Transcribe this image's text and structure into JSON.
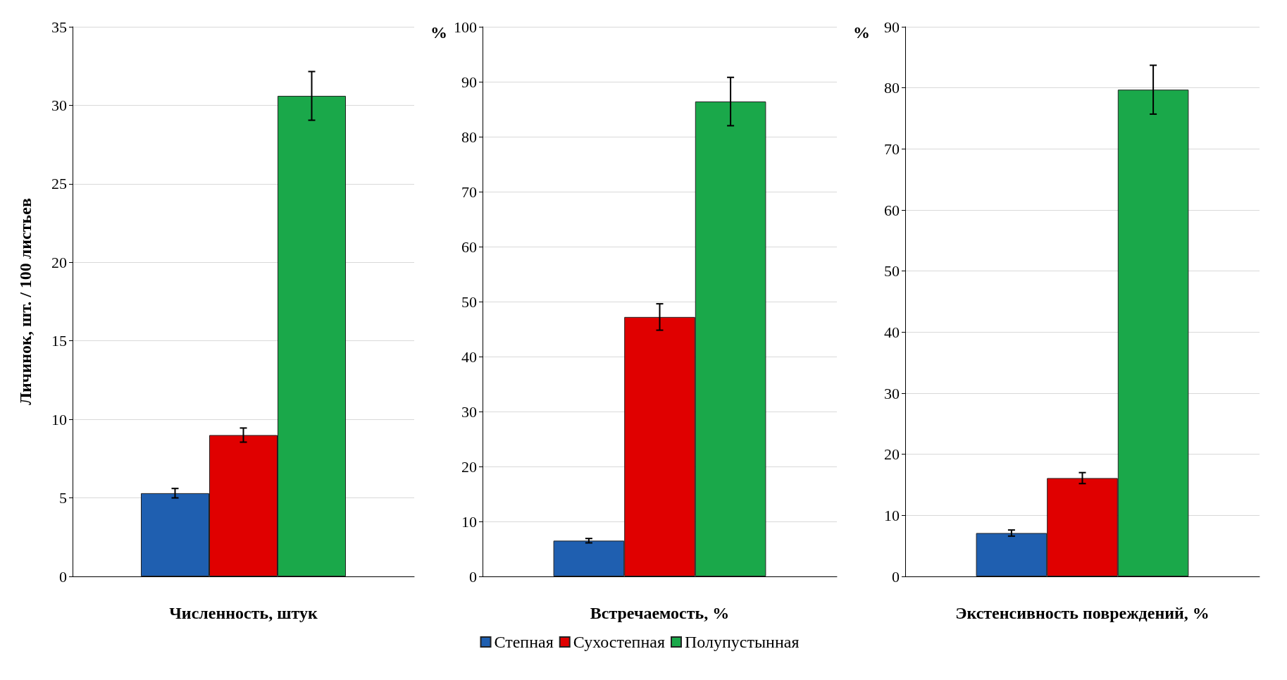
{
  "chart_data": [
    {
      "type": "bar",
      "categories": [
        null
      ],
      "xlabel": "Численность, штук",
      "ylabel": "Личинок, шт. / 100 листьев",
      "ylim": [
        0,
        35
      ],
      "yticks": [
        0,
        5,
        10,
        15,
        20,
        25,
        30,
        35
      ],
      "grid": "y",
      "series": [
        {
          "color": "#1f5fb0",
          "values": [
            5.3
          ],
          "errors": [
            0.3
          ]
        },
        {
          "color": "#e00000",
          "values": [
            9.0
          ],
          "errors": [
            0.45
          ]
        },
        {
          "color": "#1aa84a",
          "values": [
            30.6
          ],
          "errors": [
            1.55
          ]
        }
      ]
    },
    {
      "type": "bar",
      "categories": [
        null
      ],
      "xlabel": "Встречаемость, %",
      "ylabel": "%",
      "ylim": [
        0,
        100
      ],
      "yticks": [
        0,
        10,
        20,
        30,
        40,
        50,
        60,
        70,
        80,
        90,
        100
      ],
      "grid": "y",
      "legend": "bottom",
      "series": [
        {
          "name": "Степная",
          "color": "#1f5fb0",
          "values": [
            6.5
          ],
          "errors": [
            0.4
          ]
        },
        {
          "name": "Сухостепная",
          "color": "#e00000",
          "values": [
            47.2
          ],
          "errors": [
            2.4
          ]
        },
        {
          "name": "Полупустынная",
          "color": "#1aa84a",
          "values": [
            86.4
          ],
          "errors": [
            4.4
          ]
        }
      ]
    },
    {
      "type": "bar",
      "categories": [
        null
      ],
      "xlabel": "Экстенсивность повреждений, %",
      "ylabel": "%",
      "ylim": [
        0,
        90
      ],
      "yticks": [
        0,
        10,
        20,
        30,
        40,
        50,
        60,
        70,
        80,
        90
      ],
      "grid": "y",
      "series": [
        {
          "color": "#1f5fb0",
          "values": [
            7.1
          ],
          "errors": [
            0.5
          ]
        },
        {
          "color": "#e00000",
          "values": [
            16.1
          ],
          "errors": [
            0.9
          ]
        },
        {
          "color": "#1aa84a",
          "values": [
            79.7
          ],
          "errors": [
            4.0
          ]
        }
      ]
    }
  ]
}
